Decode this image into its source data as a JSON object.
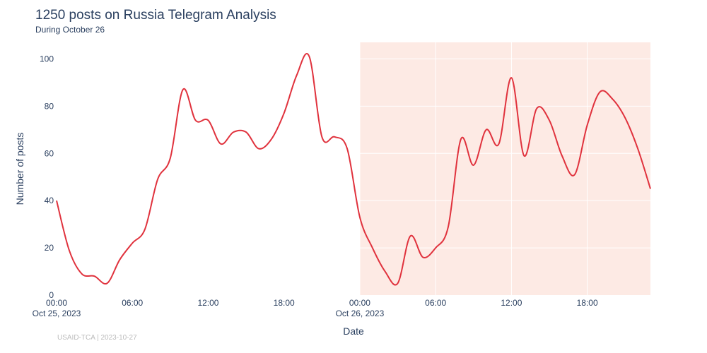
{
  "chart_data": {
    "type": "line",
    "title": "1250 posts on Russia Telegram Analysis",
    "subtitle": "During October 26",
    "xlabel": "Date",
    "ylabel": "Number of posts",
    "source": "USAID-TCA | 2023-10-27",
    "ylim": [
      0,
      107
    ],
    "xlim": [
      "2023-10-25T00:00",
      "2023-10-26T23:00"
    ],
    "highlight": {
      "start": "2023-10-26T00:00",
      "end": "2023-10-26T23:00",
      "color": "#fdeae4"
    },
    "line_color": "#e0323d",
    "grid": true,
    "yticks": [
      0,
      20,
      40,
      60,
      80,
      100
    ],
    "xticks": [
      {
        "t": "2023-10-25T00:00",
        "label": "00:00",
        "sublabel": "Oct 25, 2023"
      },
      {
        "t": "2023-10-25T06:00",
        "label": "06:00"
      },
      {
        "t": "2023-10-25T12:00",
        "label": "12:00"
      },
      {
        "t": "2023-10-25T18:00",
        "label": "18:00"
      },
      {
        "t": "2023-10-26T00:00",
        "label": "00:00",
        "sublabel": "Oct 26, 2023"
      },
      {
        "t": "2023-10-26T06:00",
        "label": "06:00"
      },
      {
        "t": "2023-10-26T12:00",
        "label": "12:00"
      },
      {
        "t": "2023-10-26T18:00",
        "label": "18:00"
      }
    ],
    "series": [
      {
        "x": [
          "2023-10-25T00:00",
          "2023-10-25T01:00",
          "2023-10-25T02:00",
          "2023-10-25T03:00",
          "2023-10-25T04:00",
          "2023-10-25T05:00",
          "2023-10-25T06:00",
          "2023-10-25T07:00",
          "2023-10-25T08:00",
          "2023-10-25T09:00",
          "2023-10-25T10:00",
          "2023-10-25T11:00",
          "2023-10-25T12:00",
          "2023-10-25T13:00",
          "2023-10-25T14:00",
          "2023-10-25T15:00",
          "2023-10-25T16:00",
          "2023-10-25T17:00",
          "2023-10-25T18:00",
          "2023-10-25T19:00",
          "2023-10-25T20:00",
          "2023-10-25T21:00",
          "2023-10-25T22:00",
          "2023-10-25T23:00",
          "2023-10-26T00:00",
          "2023-10-26T01:00",
          "2023-10-26T02:00",
          "2023-10-26T03:00",
          "2023-10-26T04:00",
          "2023-10-26T05:00",
          "2023-10-26T06:00",
          "2023-10-26T07:00",
          "2023-10-26T08:00",
          "2023-10-26T09:00",
          "2023-10-26T10:00",
          "2023-10-26T11:00",
          "2023-10-26T12:00",
          "2023-10-26T13:00",
          "2023-10-26T14:00",
          "2023-10-26T15:00",
          "2023-10-26T16:00",
          "2023-10-26T17:00",
          "2023-10-26T18:00",
          "2023-10-26T19:00",
          "2023-10-26T20:00",
          "2023-10-26T21:00",
          "2023-10-26T22:00",
          "2023-10-26T23:00"
        ],
        "y": [
          40,
          19,
          9,
          8,
          5,
          15,
          22,
          28,
          49,
          58,
          87,
          74,
          74,
          64,
          69,
          69,
          62,
          66,
          77,
          93,
          101,
          67,
          67,
          62,
          33,
          20,
          10,
          5,
          25,
          16,
          20,
          29,
          66,
          55,
          70,
          64,
          92,
          59,
          79,
          74,
          59,
          51,
          72,
          86,
          83,
          75,
          62,
          45
        ]
      }
    ]
  }
}
